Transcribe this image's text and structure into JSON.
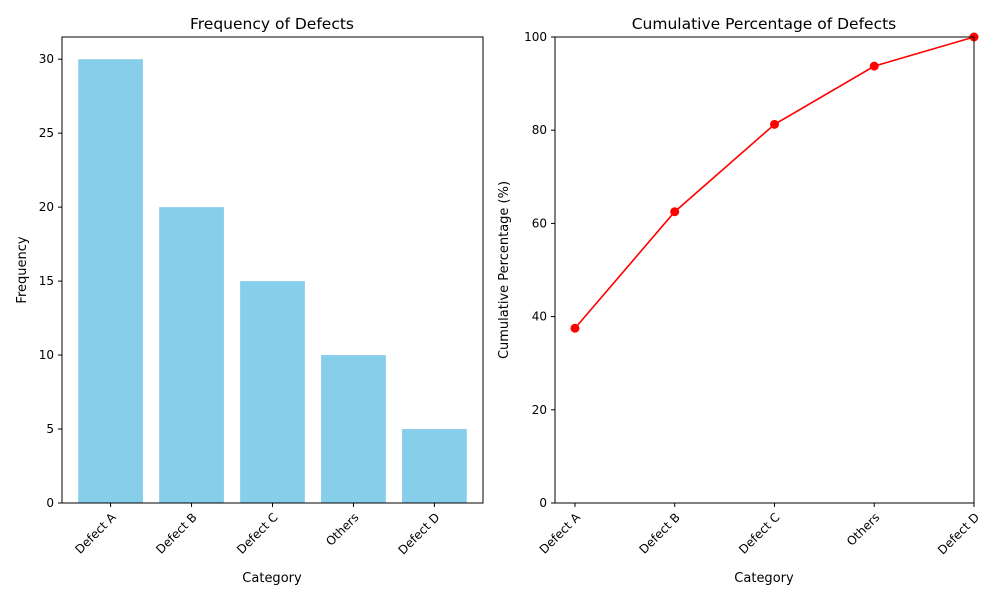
{
  "chart_data": [
    {
      "type": "bar",
      "title": "Frequency of Defects",
      "xlabel": "Category",
      "ylabel": "Frequency",
      "categories": [
        "Defect A",
        "Defect B",
        "Defect C",
        "Others",
        "Defect D"
      ],
      "values": [
        30,
        20,
        15,
        10,
        5
      ],
      "ylim": [
        0,
        31.5
      ],
      "yticks": [
        0,
        5,
        10,
        15,
        20,
        25,
        30
      ],
      "grid": false,
      "colors": {
        "bar": "#87CEEB"
      }
    },
    {
      "type": "line",
      "title": "Cumulative Percentage of Defects",
      "xlabel": "Category",
      "ylabel": "Cumulative Percentage (%)",
      "categories": [
        "Defect A",
        "Defect B",
        "Defect C",
        "Others",
        "Defect D"
      ],
      "values": [
        37.5,
        62.5,
        81.25,
        93.75,
        100
      ],
      "ylim": [
        0,
        100
      ],
      "yticks": [
        0,
        20,
        40,
        60,
        80,
        100
      ],
      "grid": false,
      "markers": true,
      "colors": {
        "line": "#FF0000",
        "marker": "#FF0000"
      }
    }
  ]
}
